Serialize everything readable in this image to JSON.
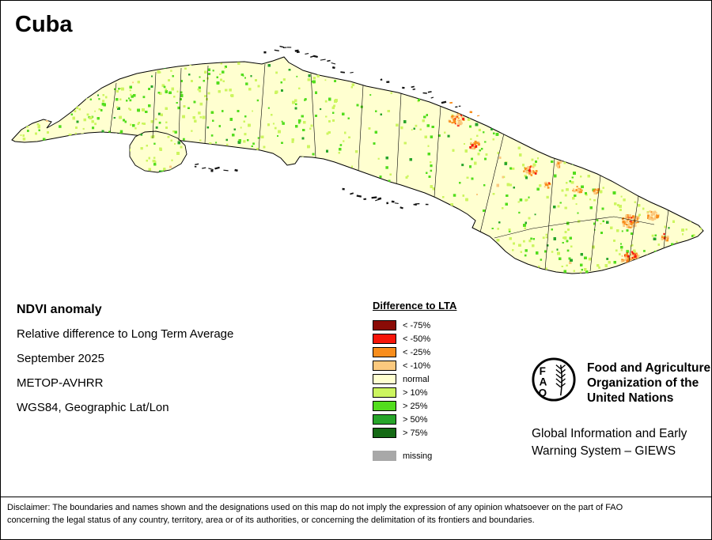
{
  "title": "Cuba",
  "info": {
    "heading": "NDVI anomaly",
    "line1": "Relative difference to Long Term Average",
    "line2": "September 2025",
    "line3": "METOP-AVHRR",
    "line4": "WGS84, Geographic Lat/Lon"
  },
  "legend": {
    "title": "Difference to LTA",
    "items": [
      {
        "label": "< -75%",
        "color": "#8a0b06"
      },
      {
        "label": "< -50%",
        "color": "#f61509"
      },
      {
        "label": "< -25%",
        "color": "#f88d1c"
      },
      {
        "label": "< -10%",
        "color": "#fbc97e"
      },
      {
        "label": "normal",
        "color": "#ffffd0"
      },
      {
        "label": "> 10%",
        "color": "#ccf55f"
      },
      {
        "label": "> 25%",
        "color": "#52dd1d"
      },
      {
        "label": "> 50%",
        "color": "#27a52a"
      },
      {
        "label": "> 75%",
        "color": "#156a15"
      }
    ],
    "missing": {
      "label": "missing",
      "color": "#a8a8a8"
    }
  },
  "fao": {
    "logo_letters": [
      "F",
      "A",
      "O"
    ],
    "org_line1": "Food and Agriculture",
    "org_line2": "Organization of the",
    "org_line3": "United Nations",
    "giews_line1": "Global Information and Early",
    "giews_line2": "Warning System – GIEWS"
  },
  "disclaimer": {
    "line1": "Disclaimer: The boundaries and names shown and the designations used on this map do not imply the expression of any opinion whatsoever on the part of FAO",
    "line2": "concerning the legal status of any country, territory, area or of its authorities, or concerning the delimitation of its frontiers and boundaries."
  }
}
